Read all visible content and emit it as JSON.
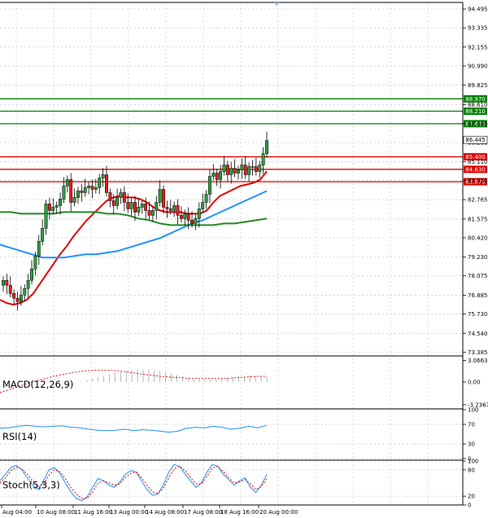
{
  "chart_data": {
    "type": "candlestick",
    "price_axis": {
      "ticks": [
        "94.495",
        "93.335",
        "92.155",
        "90.990",
        "89.825",
        "88.610",
        "87.445",
        "86.280",
        "85.110",
        "83.950",
        "82.765",
        "81.575",
        "80.420",
        "79.230",
        "78.075",
        "76.885",
        "75.730",
        "74.540",
        "73.385"
      ],
      "tick_values": [
        94.495,
        93.335,
        92.155,
        90.99,
        89.825,
        88.61,
        87.445,
        86.28,
        85.11,
        83.95,
        82.765,
        81.575,
        80.42,
        79.23,
        78.075,
        76.885,
        75.73,
        74.54,
        73.385
      ],
      "range": [
        73.2,
        94.8
      ]
    },
    "time_axis": [
      "Aug 04:00",
      "10 Aug 08:00",
      "11 Aug 16:00",
      "13 Aug 00:00",
      "14 Aug 08:00",
      "17 Aug 08:00",
      "18 Aug 16:00",
      "20 Aug 00:00"
    ],
    "current_price": {
      "label": "86.445",
      "value": 86.445
    },
    "levels": [
      {
        "label": "88.970",
        "value": 88.97,
        "color": "#008000"
      },
      {
        "label": "88.210",
        "value": 88.21,
        "color": "#008000"
      },
      {
        "label": "87.440",
        "value": 87.44,
        "color": "#008000"
      },
      {
        "label": "85.400",
        "value": 85.4,
        "color": "#e00000"
      },
      {
        "label": "84.630",
        "value": 84.63,
        "color": "#e00000"
      },
      {
        "label": "83.870",
        "value": 83.87,
        "color": "#e00000"
      }
    ],
    "candles_close": [
      77.8,
      77.5,
      77.0,
      76.7,
      76.5,
      76.9,
      77.3,
      77.8,
      78.5,
      79.3,
      80.2,
      81.0,
      82.5,
      82.1,
      82.3,
      82.4,
      82.8,
      83.6,
      84.0,
      82.6,
      82.9,
      83.3,
      83.2,
      83.5,
      83.6,
      83.4,
      83.5,
      84.1,
      84.3,
      83.2,
      82.7,
      82.4,
      82.9,
      83.2,
      82.6,
      82.2,
      82.6,
      82.0,
      82.3,
      82.5,
      82.1,
      81.8,
      82.1,
      82.6,
      83.4,
      82.3,
      82.2,
      82.1,
      82.4,
      81.8,
      81.6,
      81.9,
      81.5,
      81.3,
      81.6,
      82.2,
      82.6,
      83.1,
      84.2,
      84.4,
      84.0,
      84.5,
      84.9,
      84.3,
      84.7,
      84.4,
      84.6,
      84.9,
      84.3,
      84.8,
      84.8,
      84.5,
      84.9,
      85.6,
      86.4
    ],
    "series": [
      {
        "name": "",
        "color": "#e00000",
        "type": "ma",
        "values": [
          76.6,
          76.4,
          76.3,
          76.4,
          76.6,
          77.0,
          77.6,
          78.2,
          78.8,
          79.4,
          79.9,
          80.5,
          81.0,
          81.5,
          81.9,
          82.3,
          82.7,
          82.9,
          83.0,
          82.9,
          82.9,
          82.8,
          82.6,
          82.3,
          82.1,
          82.0,
          82.0,
          82.0,
          81.9,
          81.9,
          81.9,
          82.1,
          82.6,
          83.0,
          83.2,
          83.4,
          83.6,
          83.7,
          83.8,
          84.0,
          84.5
        ]
      },
      {
        "name": "",
        "color": "#1e90ff",
        "type": "ma",
        "values": [
          80.0,
          79.8,
          79.6,
          79.4,
          79.2,
          79.2,
          79.2,
          79.3,
          79.4,
          79.4,
          79.5,
          79.6,
          79.8,
          80.0,
          80.2,
          80.4,
          80.7,
          81.0,
          81.3,
          81.5,
          81.8,
          82.1,
          82.4,
          82.7,
          83.0,
          83.3
        ]
      },
      {
        "name": "",
        "color": "#228b22",
        "type": "ma",
        "values": [
          82.0,
          82.0,
          81.9,
          81.9,
          81.9,
          81.9,
          82.0,
          82.0,
          82.0,
          82.0,
          81.9,
          81.9,
          81.8,
          81.6,
          81.5,
          81.3,
          81.2,
          81.2,
          81.2,
          81.2,
          81.2,
          81.3,
          81.3,
          81.4,
          81.5,
          81.6
        ]
      }
    ],
    "indicators": [
      {
        "label": "MACD(12,26,9)",
        "ticks": [
          "3.0663",
          "0.00",
          "-3.2367"
        ],
        "tick_values": [
          3.0663,
          0.0,
          -3.2367
        ],
        "range": [
          -3.6,
          3.6
        ],
        "histogram": [
          0.1,
          0.3,
          0.5,
          0.7,
          0.9,
          1.1,
          1.3,
          1.5,
          1.6,
          1.7,
          1.8,
          1.8,
          1.8,
          1.7,
          1.6,
          1.4,
          1.2,
          1.0,
          0.8,
          0.6,
          0.5,
          0.4,
          0.4,
          0.4,
          0.4,
          0.5,
          0.6,
          0.7,
          0.8,
          0.8,
          0.9,
          0.9,
          0.9,
          0.8
        ],
        "signal": [
          -1.5,
          -1.0,
          -0.5,
          0.0,
          0.4,
          0.8,
          1.1,
          1.4,
          1.6,
          1.7,
          1.7,
          1.6,
          1.4,
          1.2,
          1.0,
          0.8,
          0.7,
          0.6,
          0.5,
          0.5,
          0.5,
          0.5,
          0.6,
          0.7,
          0.8,
          0.8
        ]
      },
      {
        "label": "RSI(14)",
        "ticks": [
          "100",
          "70",
          "30",
          "0"
        ],
        "tick_values": [
          100,
          70,
          30,
          0
        ],
        "range": [
          0,
          100
        ],
        "values": [
          62,
          63,
          66,
          68,
          66,
          65,
          66,
          67,
          64,
          63,
          60,
          58,
          57,
          58,
          60,
          57,
          59,
          58,
          56,
          54,
          56,
          62,
          64,
          63,
          66,
          64,
          60,
          62,
          66,
          63,
          68
        ]
      },
      {
        "label": "Stoch(5,3,3)",
        "ticks": [
          "100",
          "80",
          "20",
          "0"
        ],
        "tick_values": [
          100,
          80,
          20,
          0
        ],
        "range": [
          0,
          100
        ],
        "k": [
          55,
          70,
          85,
          90,
          80,
          62,
          45,
          35,
          55,
          80,
          85,
          72,
          50,
          30,
          15,
          10,
          18,
          40,
          60,
          55,
          45,
          40,
          52,
          70,
          78,
          75,
          55,
          35,
          22,
          25,
          45,
          75,
          92,
          88,
          70,
          55,
          40,
          50,
          75,
          92,
          88,
          70,
          58,
          45,
          55,
          62,
          40,
          28,
          45,
          70
        ],
        "d": [
          50,
          62,
          78,
          86,
          82,
          70,
          55,
          42,
          48,
          68,
          80,
          76,
          60,
          40,
          25,
          15,
          15,
          30,
          50,
          55,
          50,
          45,
          48,
          62,
          72,
          75,
          62,
          45,
          30,
          26,
          38,
          62,
          82,
          88,
          78,
          62,
          48,
          48,
          65,
          84,
          88,
          76,
          62,
          50,
          52,
          58,
          48,
          35,
          42,
          60
        ]
      }
    ]
  }
}
